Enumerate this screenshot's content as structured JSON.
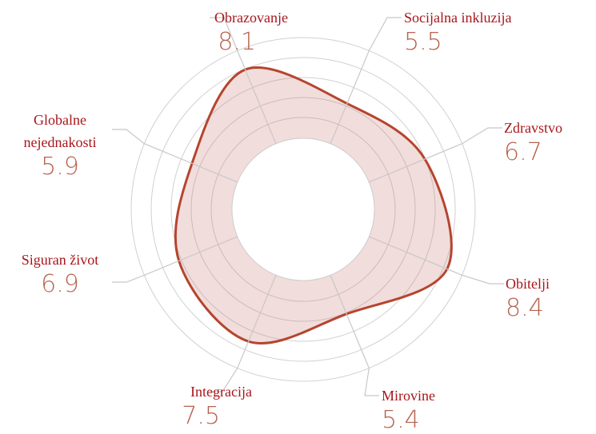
{
  "chart_data": {
    "type": "radar",
    "categories": [
      "Obrazovanje",
      "Socijalna inkluzija",
      "Zdravstvo",
      "Obitelji",
      "Mirovine",
      "Integracija",
      "Siguran život",
      "Globalne nejednakosti"
    ],
    "values": [
      8.1,
      5.5,
      6.7,
      8.4,
      5.4,
      7.5,
      6.9,
      5.9
    ],
    "ylim": [
      0,
      10
    ],
    "color": "#b5452f"
  }
}
